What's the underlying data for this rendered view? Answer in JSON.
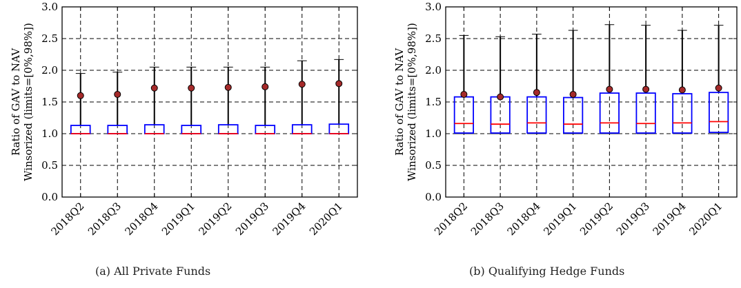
{
  "chart_data": [
    {
      "type": "box",
      "caption": "(a)  All Private Funds",
      "ylabel_lines": [
        "Ratio of GAV to NAV",
        "Winsorized (limits=[0%,98%])"
      ],
      "ylim": [
        0.0,
        3.0
      ],
      "yticks": [
        "0.0",
        "0.5",
        "1.0",
        "1.5",
        "2.0",
        "2.5",
        "3.0"
      ],
      "grid": true,
      "categories": [
        "2018Q2",
        "2018Q3",
        "2018Q4",
        "2019Q1",
        "2019Q2",
        "2019Q3",
        "2019Q4",
        "2020Q1"
      ],
      "boxes": [
        {
          "whislo": 1.0,
          "q1": 1.0,
          "med": 1.0,
          "q3": 1.13,
          "whishi": 1.95,
          "mean": 1.6
        },
        {
          "whislo": 1.0,
          "q1": 1.0,
          "med": 1.0,
          "q3": 1.13,
          "whishi": 1.97,
          "mean": 1.62
        },
        {
          "whislo": 1.0,
          "q1": 1.0,
          "med": 1.0,
          "q3": 1.14,
          "whishi": 2.05,
          "mean": 1.72
        },
        {
          "whislo": 1.0,
          "q1": 1.0,
          "med": 1.0,
          "q3": 1.13,
          "whishi": 2.05,
          "mean": 1.72
        },
        {
          "whislo": 1.0,
          "q1": 1.0,
          "med": 1.0,
          "q3": 1.14,
          "whishi": 2.05,
          "mean": 1.73
        },
        {
          "whislo": 1.0,
          "q1": 1.0,
          "med": 1.0,
          "q3": 1.13,
          "whishi": 2.05,
          "mean": 1.74
        },
        {
          "whislo": 1.0,
          "q1": 1.0,
          "med": 1.0,
          "q3": 1.14,
          "whishi": 2.15,
          "mean": 1.78
        },
        {
          "whislo": 1.0,
          "q1": 1.0,
          "med": 1.0,
          "q3": 1.15,
          "whishi": 2.17,
          "mean": 1.79
        }
      ]
    },
    {
      "type": "box",
      "caption": "(b)  Qualifying Hedge Funds",
      "ylabel_lines": [
        "Ratio of GAV to NAV",
        "Winsorized (limits=[0%,98%])"
      ],
      "ylim": [
        0.0,
        3.0
      ],
      "yticks": [
        "0.0",
        "0.5",
        "1.0",
        "1.5",
        "2.0",
        "2.5",
        "3.0"
      ],
      "grid": true,
      "categories": [
        "2018Q2",
        "2018Q3",
        "2018Q4",
        "2019Q1",
        "2019Q2",
        "2019Q3",
        "2019Q4",
        "2020Q1"
      ],
      "boxes": [
        {
          "whislo": 1.0,
          "q1": 1.01,
          "med": 1.16,
          "q3": 1.58,
          "whishi": 2.55,
          "mean": 1.62
        },
        {
          "whislo": 1.0,
          "q1": 1.01,
          "med": 1.15,
          "q3": 1.58,
          "whishi": 2.53,
          "mean": 1.58
        },
        {
          "whislo": 1.0,
          "q1": 1.01,
          "med": 1.17,
          "q3": 1.58,
          "whishi": 2.57,
          "mean": 1.65
        },
        {
          "whislo": 1.0,
          "q1": 1.01,
          "med": 1.15,
          "q3": 1.57,
          "whishi": 2.63,
          "mean": 1.62
        },
        {
          "whislo": 1.0,
          "q1": 1.01,
          "med": 1.17,
          "q3": 1.64,
          "whishi": 2.72,
          "mean": 1.7
        },
        {
          "whislo": 1.0,
          "q1": 1.01,
          "med": 1.16,
          "q3": 1.64,
          "whishi": 2.71,
          "mean": 1.7
        },
        {
          "whislo": 1.0,
          "q1": 1.01,
          "med": 1.17,
          "q3": 1.63,
          "whishi": 2.63,
          "mean": 1.69
        },
        {
          "whislo": 1.0,
          "q1": 1.02,
          "med": 1.19,
          "q3": 1.65,
          "whishi": 2.71,
          "mean": 1.72
        }
      ]
    }
  ],
  "colors": {
    "box": "#0000ff",
    "median": "#ff0000",
    "whisker": "#000000",
    "mean_fill": "#a52a2a",
    "grid": "#000000"
  }
}
